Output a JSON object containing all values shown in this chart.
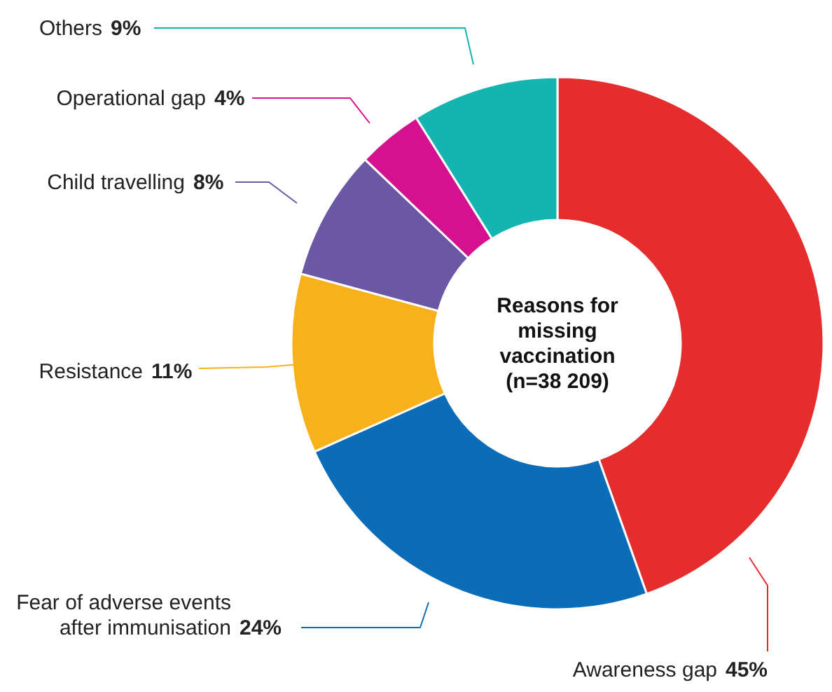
{
  "chart_data": {
    "type": "donut",
    "title": "Reasons for missing vaccination (n=38 209)",
    "categories": [
      "Awareness gap",
      "Fear of adverse events after immunisation",
      "Resistance",
      "Child travelling",
      "Operational gap",
      "Others"
    ],
    "values": [
      45,
      24,
      11,
      8,
      4,
      9
    ],
    "colors": [
      "#e52d2e",
      "#0b6db7",
      "#f9b11b",
      "#6b58a5",
      "#d4118e",
      "#14b5b0"
    ],
    "value_labels": [
      "45%",
      "24%",
      "11%",
      "8%",
      "4%",
      "9%"
    ]
  }
}
